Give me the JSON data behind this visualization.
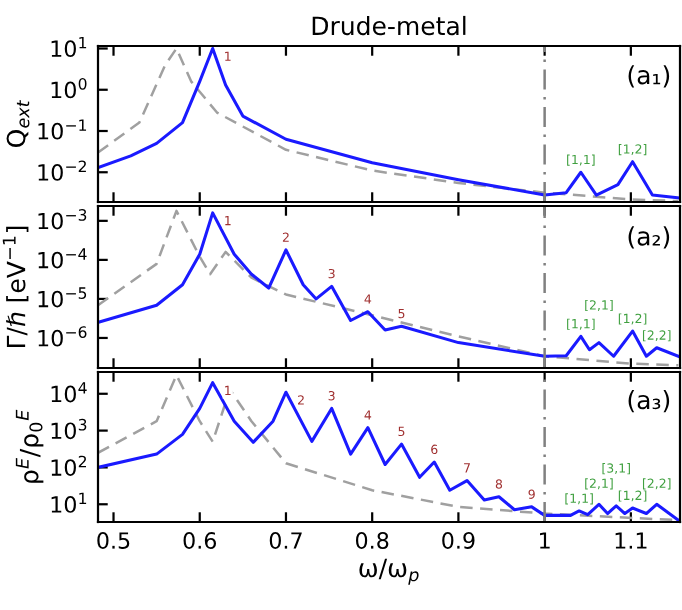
{
  "chart_data": [
    {
      "type": "line",
      "title": "Drude-metal",
      "ylabel": "Q$_{ext}$",
      "log": "y",
      "xlim": [
        0.482,
        1.157
      ],
      "ylim": [
        0.0019,
        11.5
      ],
      "tick_labels": "y",
      "grid": false,
      "legend": false,
      "xticks": [
        0.5,
        0.6,
        0.7,
        0.8,
        0.9,
        1,
        1.1
      ],
      "yticks": [
        {
          "value": 0.01,
          "label": "10$^{−2}$"
        },
        {
          "value": 0.1,
          "label": "10$^{−1}$"
        },
        {
          "value": 1,
          "label": "10$^{0}$"
        },
        {
          "value": 10,
          "label": "10$^{1}$"
        }
      ],
      "series": [
        {
          "color": "#a0a0a0",
          "line_style": "dashed",
          "x": [
            0.482,
            0.53,
            0.56,
            0.573,
            0.59,
            0.62,
            0.7,
            0.8,
            0.9,
            1.0,
            1.1,
            1.155
          ],
          "values": [
            0.03,
            0.16,
            4,
            10,
            1.6,
            0.28,
            0.035,
            0.011,
            0.0055,
            0.0032,
            0.0022,
            0.002
          ]
        },
        {
          "color": "#1a1aff",
          "line_style": "solid",
          "x": [
            0.482,
            0.52,
            0.55,
            0.58,
            0.6,
            0.615,
            0.63,
            0.65,
            0.7,
            0.8,
            0.9,
            1.0,
            1.025,
            1.042,
            1.06,
            1.085,
            1.102,
            1.125,
            1.155
          ],
          "values": [
            0.013,
            0.025,
            0.05,
            0.16,
            1.6,
            10,
            1.3,
            0.23,
            0.063,
            0.017,
            0.0066,
            0.0028,
            0.0032,
            0.01,
            0.0028,
            0.005,
            0.018,
            0.0028,
            0.0024
          ]
        }
      ],
      "ref_lines": [
        {
          "axis": "x",
          "value": 1,
          "color": "#808080",
          "line_style": "dashdot"
        }
      ],
      "annotations": [
        "(a₁)",
        {
          "text": "1",
          "x": 0.615,
          "y": 10
        },
        {
          "text": "[1,1]",
          "x": 1.042,
          "y": 0.01
        },
        {
          "text": "[1,2]",
          "x": 1.102,
          "y": 0.018
        }
      ]
    },
    {
      "type": "line",
      "ylabel": "Γ/ℏ [eV$^{−1}$]",
      "log": "y",
      "xlim": [
        0.482,
        1.157
      ],
      "ylim": [
        1.7e-07,
        0.0024
      ],
      "tick_labels": "y",
      "grid": false,
      "legend": false,
      "xticks": [
        0.5,
        0.6,
        0.7,
        0.8,
        0.9,
        1,
        1.1
      ],
      "yticks": [
        {
          "value": 1e-06,
          "label": "10$^{−6}$"
        },
        {
          "value": 1e-05,
          "label": "10$^{−5}$"
        },
        {
          "value": 0.0001,
          "label": "10$^{−4}$"
        },
        {
          "value": 0.001,
          "label": "10$^{−3}$"
        }
      ],
      "series": [
        {
          "color": "#a0a0a0",
          "line_style": "dashed",
          "x": [
            0.482,
            0.55,
            0.573,
            0.6,
            0.612,
            0.63,
            0.66,
            0.7,
            0.8,
            0.9,
            1.0,
            1.1,
            1.155
          ],
          "values": [
            6.9e-06,
            7.9e-05,
            0.0018,
            0.00012,
            4.3e-05,
            0.00016,
            3.5e-05,
            1.3e-05,
            3.8e-06,
            1.1e-06,
            3.4e-07,
            2.2e-07,
            2e-07
          ]
        },
        {
          "color": "#1a1aff",
          "line_style": "solid",
          "x": [
            0.482,
            0.55,
            0.58,
            0.6,
            0.615,
            0.64,
            0.66,
            0.68,
            0.7,
            0.72,
            0.735,
            0.753,
            0.775,
            0.795,
            0.815,
            0.834,
            0.9,
            1.0,
            1.025,
            1.042,
            1.052,
            1.063,
            1.08,
            1.102,
            1.118,
            1.13,
            1.155
          ],
          "values": [
            2.5e-06,
            6.9e-06,
            2.3e-05,
            0.00014,
            0.0016,
            0.00014,
            4.3e-05,
            1.9e-05,
            0.00018,
            2.3e-05,
            1e-05,
            2.1e-05,
            2.8e-06,
            4.7e-06,
            1.6e-06,
            2e-06,
            7.6e-07,
            3.4e-07,
            3.5e-07,
            1.1e-06,
            5e-07,
            7.6e-07,
            3.4e-07,
            1.5e-06,
            3.4e-07,
            5.6e-07,
            3.4e-07
          ]
        }
      ],
      "ref_lines": [
        {
          "axis": "x",
          "value": 1,
          "color": "#808080",
          "line_style": "dashdot"
        }
      ],
      "annotations": [
        "(a₂)",
        {
          "text": "1",
          "x": 0.615,
          "y": 0.0016
        },
        {
          "text": "2",
          "x": 0.7,
          "y": 0.00018
        },
        {
          "text": "3",
          "x": 0.753,
          "y": 2.1e-05
        },
        {
          "text": "4",
          "x": 0.795,
          "y": 4.7e-06
        },
        {
          "text": "5",
          "x": 0.834,
          "y": 2e-06
        },
        {
          "text": "[1,1]",
          "x": 1.042,
          "y": 1.1e-06
        },
        {
          "text": "[2,1]",
          "x": 1.063,
          "y": 7.6e-07
        },
        {
          "text": "[1,2]",
          "x": 1.102,
          "y": 1.5e-06
        },
        {
          "text": "[2,2]",
          "x": 1.13,
          "y": 5.6e-07
        }
      ]
    },
    {
      "type": "line",
      "xlabel": "ω/ω$_{p}$",
      "ylabel": "ρ$^{E}$/ρ$_{0}$$^{E}$",
      "log": "y",
      "xlim": [
        0.482,
        1.157
      ],
      "ylim": [
        3.3,
        39000
      ],
      "grid": false,
      "legend": false,
      "xticks": [
        0.5,
        0.6,
        0.7,
        0.8,
        0.9,
        1,
        1.1
      ],
      "yticks": [
        {
          "value": 10,
          "label": "10$^{1}$"
        },
        {
          "value": 100,
          "label": "10$^{2}$"
        },
        {
          "value": 1000,
          "label": "10$^{3}$"
        },
        {
          "value": 10000,
          "label": "10$^{4}$"
        }
      ],
      "series": [
        {
          "color": "#a0a0a0",
          "line_style": "dashed",
          "x": [
            0.482,
            0.55,
            0.573,
            0.6,
            0.615,
            0.635,
            0.66,
            0.7,
            0.8,
            0.9,
            1.0,
            1.155
          ],
          "values": [
            250,
            1800,
            32000,
            1800,
            500,
            13000,
            1800,
            130,
            24,
            8.5,
            5.6,
            3.7
          ]
        },
        {
          "color": "#1a1aff",
          "line_style": "solid",
          "x": [
            0.482,
            0.55,
            0.58,
            0.6,
            0.615,
            0.64,
            0.662,
            0.685,
            0.7,
            0.73,
            0.753,
            0.775,
            0.795,
            0.815,
            0.834,
            0.855,
            0.872,
            0.89,
            0.91,
            0.93,
            0.947,
            0.965,
            0.985,
            1.0,
            1.03,
            1.04,
            1.05,
            1.063,
            1.073,
            1.083,
            1.093,
            1.102,
            1.118,
            1.13,
            1.155
          ],
          "values": [
            100,
            230,
            790,
            4000,
            20000,
            1800,
            480,
            1800,
            11000,
            510,
            4000,
            230,
            1200,
            120,
            430,
            54,
            140,
            24,
            44,
            13,
            16,
            7.1,
            8.5,
            5,
            5,
            6.6,
            5.2,
            10,
            5.6,
            9.1,
            5.6,
            7.9,
            5.6,
            10,
            3.7
          ]
        }
      ],
      "ref_lines": [
        {
          "axis": "x",
          "value": 1,
          "color": "#808080",
          "line_style": "dashdot"
        }
      ],
      "annotations": [
        "(a₃)",
        {
          "text": "1",
          "x": 0.615,
          "y": 20000
        },
        {
          "text": "2",
          "x": 0.7,
          "y": 11000
        },
        {
          "text": "3",
          "x": 0.753,
          "y": 4000
        },
        {
          "text": "4",
          "x": 0.795,
          "y": 1200
        },
        {
          "text": "5",
          "x": 0.834,
          "y": 430
        },
        {
          "text": "6",
          "x": 0.872,
          "y": 140
        },
        {
          "text": "7",
          "x": 0.91,
          "y": 44
        },
        {
          "text": "8",
          "x": 0.947,
          "y": 16
        },
        {
          "text": "9",
          "x": 0.985,
          "y": 8.5
        },
        {
          "text": "[1,1]",
          "x": 1.04,
          "y": 6.6
        },
        {
          "text": "[2,1]",
          "x": 1.063,
          "y": 10
        },
        {
          "text": "[3,1]",
          "x": 1.083,
          "y": 9.1
        },
        {
          "text": "[1,2]",
          "x": 1.102,
          "y": 7.9
        },
        {
          "text": "[2,2]",
          "x": 1.13,
          "y": 10
        }
      ]
    }
  ]
}
